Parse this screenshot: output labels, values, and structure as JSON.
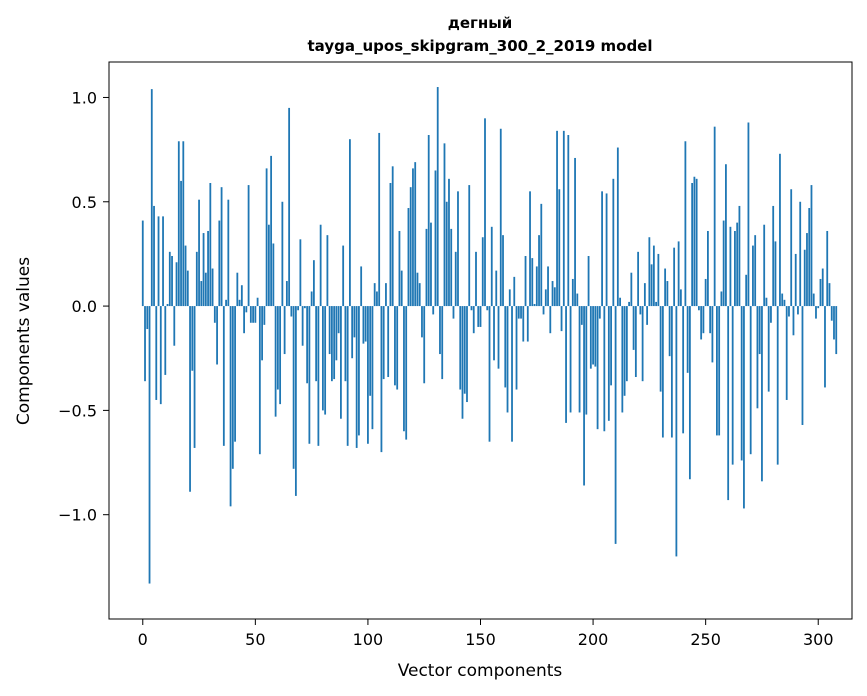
{
  "chart_data": {
    "type": "bar",
    "title_line1": "дегный",
    "title_line2": "tayga_upos_skipgram_300_2_2019 model",
    "xlabel": "Vector components",
    "ylabel": "Components values",
    "xlim": [
      -15,
      315
    ],
    "ylim": [
      -1.5,
      1.17
    ],
    "x_ticks": [
      0,
      50,
      100,
      150,
      200,
      250,
      300
    ],
    "x_tick_labels": [
      "0",
      "50",
      "100",
      "150",
      "200",
      "250",
      "300"
    ],
    "y_ticks": [
      -1.0,
      -0.5,
      0.0,
      0.5,
      1.0
    ],
    "y_tick_labels": [
      "−1.0",
      "−0.5",
      "0.0",
      "0.5",
      "1.0"
    ],
    "bar_color": "#1f77b4",
    "values": [
      0.41,
      -0.36,
      -0.11,
      -1.33,
      1.04,
      0.48,
      -0.45,
      0.43,
      -0.47,
      0.43,
      -0.33,
      0.01,
      0.26,
      0.24,
      -0.19,
      0.21,
      0.79,
      0.6,
      0.79,
      0.29,
      0.17,
      -0.89,
      -0.31,
      -0.68,
      0.26,
      0.51,
      0.12,
      0.35,
      0.16,
      0.36,
      0.59,
      0.18,
      -0.08,
      -0.28,
      0.41,
      0.57,
      -0.67,
      0.03,
      0.51,
      -0.96,
      -0.78,
      -0.65,
      0.16,
      0.03,
      0.1,
      -0.13,
      -0.03,
      0.58,
      -0.08,
      -0.08,
      -0.08,
      0.04,
      -0.71,
      -0.26,
      -0.09,
      0.66,
      0.39,
      0.72,
      0.3,
      -0.53,
      -0.4,
      -0.47,
      0.5,
      -0.23,
      0.12,
      0.95,
      -0.05,
      -0.78,
      -0.91,
      -0.02,
      0.32,
      -0.19,
      -0.01,
      -0.37,
      -0.66,
      0.07,
      0.22,
      -0.36,
      -0.67,
      0.39,
      -0.5,
      -0.52,
      0.34,
      -0.23,
      -0.36,
      -0.35,
      -0.26,
      -0.13,
      -0.54,
      0.29,
      -0.36,
      -0.67,
      0.8,
      -0.25,
      -0.15,
      -0.68,
      -0.62,
      0.19,
      -0.18,
      -0.17,
      -0.66,
      -0.43,
      -0.59,
      0.11,
      0.07,
      0.83,
      -0.7,
      -0.35,
      0.11,
      -0.34,
      0.59,
      0.67,
      -0.38,
      -0.4,
      0.36,
      0.17,
      -0.6,
      -0.64,
      0.47,
      0.57,
      0.66,
      0.69,
      0.16,
      0.11,
      -0.15,
      -0.37,
      0.37,
      0.82,
      0.4,
      -0.04,
      0.65,
      1.05,
      -0.23,
      -0.35,
      0.78,
      0.5,
      0.61,
      0.37,
      -0.06,
      0.26,
      0.55,
      -0.4,
      -0.54,
      -0.42,
      -0.46,
      0.58,
      -0.02,
      -0.13,
      0.26,
      -0.1,
      -0.1,
      0.33,
      0.9,
      -0.02,
      -0.65,
      0.38,
      -0.26,
      0.17,
      -0.3,
      0.85,
      0.34,
      -0.39,
      -0.51,
      0.08,
      -0.65,
      0.14,
      -0.4,
      -0.06,
      -0.06,
      -0.17,
      0.24,
      -0.17,
      0.55,
      0.23,
      0.01,
      0.19,
      0.34,
      0.49,
      -0.04,
      0.08,
      0.19,
      -0.13,
      0.12,
      0.09,
      0.84,
      0.56,
      -0.12,
      0.84,
      -0.56,
      0.82,
      -0.51,
      0.13,
      0.71,
      0.06,
      -0.51,
      -0.09,
      -0.86,
      -0.52,
      0.24,
      -0.3,
      -0.28,
      -0.29,
      -0.59,
      -0.06,
      0.55,
      -0.6,
      0.54,
      -0.55,
      -0.38,
      0.61,
      -1.14,
      0.76,
      0.04,
      -0.51,
      -0.43,
      -0.36,
      0.02,
      0.16,
      -0.21,
      -0.34,
      0.26,
      -0.04,
      -0.36,
      0.11,
      -0.09,
      0.33,
      0.2,
      0.29,
      0.02,
      0.25,
      -0.41,
      -0.63,
      0.18,
      0.12,
      -0.24,
      -0.63,
      0.28,
      -1.2,
      0.31,
      0.08,
      -0.61,
      0.79,
      -0.32,
      -0.83,
      0.59,
      0.62,
      0.61,
      -0.02,
      -0.16,
      -0.13,
      0.13,
      0.36,
      -0.13,
      -0.27,
      0.86,
      -0.62,
      -0.62,
      0.07,
      0.41,
      0.68,
      -0.93,
      0.38,
      -0.76,
      0.36,
      0.4,
      0.48,
      -0.74,
      -0.97,
      0.15,
      0.88,
      -0.71,
      0.29,
      0.34,
      -0.49,
      -0.23,
      -0.84,
      0.39,
      0.04,
      -0.41,
      -0.08,
      0.48,
      0.31,
      -0.76,
      0.73,
      0.06,
      0.03,
      -0.45,
      -0.05,
      0.56,
      -0.14,
      0.25,
      -0.04,
      0.5,
      -0.57,
      0.27,
      0.35,
      0.47,
      0.58,
      0.06,
      -0.06,
      -0.01,
      0.13,
      0.18,
      -0.39,
      0.36,
      0.11,
      -0.07,
      -0.16,
      -0.23
    ]
  }
}
